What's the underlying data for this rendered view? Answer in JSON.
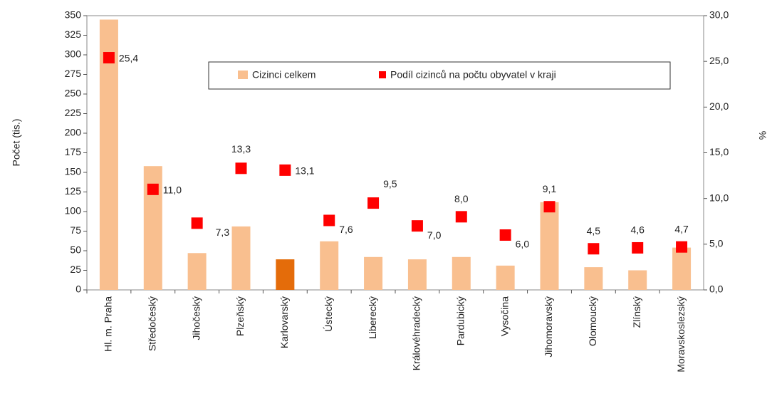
{
  "chart_data": {
    "type": "bar",
    "y_label": "Počet (tis.)",
    "y2_label": "%",
    "categories": [
      "Hl. m. Praha",
      "Středočeský",
      "Jihočeský",
      "Plzeňský",
      "Karlovarský",
      "Ústecký",
      "Liberecký",
      "Královéhradecký",
      "Pardubický",
      "Vysočina",
      "Jihomoravský",
      "Olomoucký",
      "Zlínský",
      "Moravskoslezský"
    ],
    "series": [
      {
        "name": "Cizinci celkem",
        "type": "bar",
        "color": "#f9bf8f",
        "colors": [
          "#f9bf8f",
          "#f9bf8f",
          "#f9bf8f",
          "#f9bf8f",
          "#e46c0a",
          "#f9bf8f",
          "#f9bf8f",
          "#f9bf8f",
          "#f9bf8f",
          "#f9bf8f",
          "#f9bf8f",
          "#f9bf8f",
          "#f9bf8f",
          "#f9bf8f"
        ],
        "values": [
          345,
          158,
          47,
          81,
          39,
          62,
          42,
          39,
          42,
          31,
          112,
          29,
          25,
          54
        ]
      },
      {
        "name": "Podíl cizinců na počtu obyvatel v kraji",
        "type": "scatter",
        "axis": "y2",
        "color": "#ff0000",
        "values": [
          25.4,
          11.0,
          7.3,
          13.3,
          13.1,
          7.6,
          9.5,
          7.0,
          8.0,
          6.0,
          9.1,
          4.5,
          4.6,
          4.7
        ],
        "value_labels": [
          "25,4",
          "11,0",
          "7,3",
          "13,3",
          "13,1",
          "7,6",
          "9,5",
          "7,0",
          "8,0",
          "6,0",
          "9,1",
          "4,5",
          "4,6",
          "4,7"
        ]
      }
    ],
    "ylim": [
      0,
      350
    ],
    "yticks": [
      0,
      25,
      50,
      75,
      100,
      125,
      150,
      175,
      200,
      225,
      250,
      275,
      300,
      325,
      350
    ],
    "y2lim": [
      0,
      30
    ],
    "y2ticks": [
      {
        "value": 0,
        "label": "0,0"
      },
      {
        "value": 5,
        "label": "5,0"
      },
      {
        "value": 10,
        "label": "10,0"
      },
      {
        "value": 15,
        "label": "15,0"
      },
      {
        "value": 20,
        "label": "20,0"
      },
      {
        "value": 25,
        "label": "25,0"
      },
      {
        "value": 30,
        "label": "30,0"
      }
    ],
    "grid": false,
    "legend": "top"
  }
}
